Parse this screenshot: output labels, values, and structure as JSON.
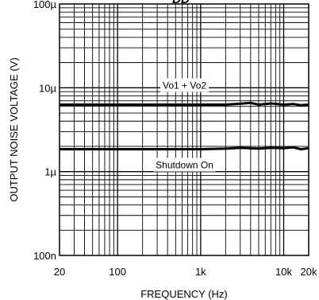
{
  "chart_data": {
    "type": "line",
    "title_fragment": "DD",
    "xlabel": "FREQUENCY (Hz)",
    "ylabel": "OUTPUT NOISE VOLTAGE (V)",
    "x_scale": "log",
    "y_scale": "log",
    "xlim": [
      20,
      20000
    ],
    "ylim": [
      1e-07,
      0.0001
    ],
    "grid": true,
    "x_ticks": [
      {
        "value": 20,
        "label": "20"
      },
      {
        "value": 100,
        "label": "100"
      },
      {
        "value": 1000,
        "label": "1k"
      },
      {
        "value": 10000,
        "label": "10k"
      },
      {
        "value": 20000,
        "label": "20k"
      }
    ],
    "y_ticks": [
      {
        "value": 1e-07,
        "label": "100n"
      },
      {
        "value": 1e-06,
        "label": "1µ"
      },
      {
        "value": 1e-05,
        "label": "10µ"
      },
      {
        "value": 0.0001,
        "label": "100µ"
      }
    ],
    "series": [
      {
        "name": "Vo1 + Vo2",
        "x": [
          20,
          50,
          100,
          200,
          500,
          1000,
          2000,
          3000,
          4000,
          5000,
          7000,
          10000,
          13000,
          16000,
          20000
        ],
        "y": [
          6.3e-06,
          6.3e-06,
          6.3e-06,
          6.3e-06,
          6.3e-06,
          6.3e-06,
          6.3e-06,
          6.45e-06,
          6.6e-06,
          6.3e-06,
          6.5e-06,
          6.3e-06,
          6.4e-06,
          6.2e-06,
          6.3e-06
        ]
      },
      {
        "name": "Shutdown On",
        "x": [
          20,
          50,
          100,
          200,
          500,
          1000,
          2000,
          3000,
          5000,
          7000,
          10000,
          13000,
          16000,
          20000
        ],
        "y": [
          1.85e-06,
          1.85e-06,
          1.85e-06,
          1.85e-06,
          1.85e-06,
          1.85e-06,
          1.88e-06,
          1.92e-06,
          1.88e-06,
          1.92e-06,
          1.9e-06,
          1.95e-06,
          1.85e-06,
          1.9e-06
        ]
      }
    ],
    "annotations": [
      {
        "text": "Vo1 + Vo2",
        "series": 0
      },
      {
        "text": "Shutdown On",
        "series": 1
      }
    ]
  }
}
